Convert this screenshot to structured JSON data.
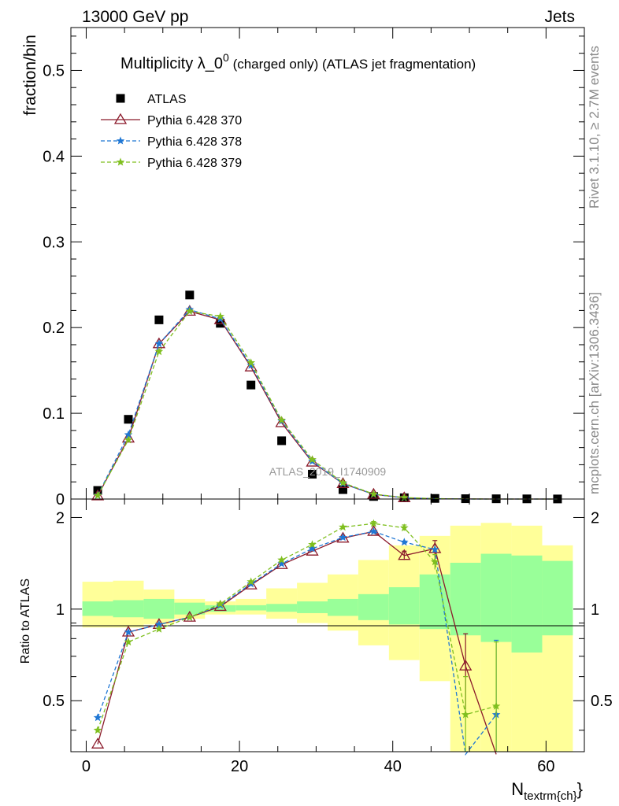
{
  "header": {
    "left": "13000 GeV pp",
    "right": "Jets"
  },
  "side_labels": {
    "rivet": "Rivet 3.1.10, ≥ 2.7M events",
    "mcplots": "mcplots.cern.ch [arXiv:1306.3436]"
  },
  "chart_data": [
    {
      "type": "scatter",
      "title": "Multiplicity λ_0^0 (charged only) (ATLAS jet fragmentation)",
      "title_main": "Multiplicity λ_0",
      "title_sup": "0",
      "title_rest": " (charged only) (ATLAS jet fragmentation)",
      "ylabel": "fraction/bin",
      "watermark": "ATLAS_2019_I1740909",
      "xlim": [
        -2,
        65
      ],
      "ylim": [
        0,
        0.55
      ],
      "yticks": [
        0,
        0.1,
        0.2,
        0.3,
        0.4,
        0.5
      ],
      "ytick_labels": [
        "0",
        "0.1",
        "0.2",
        "0.3",
        "0.4",
        "0.5"
      ],
      "legend_position": "top-left",
      "x": [
        1.5,
        5.5,
        9.5,
        13.5,
        17.5,
        21.5,
        25.5,
        29.5,
        33.5,
        37.5,
        41.5,
        45.5,
        49.5,
        53.5,
        57.5,
        61.5
      ],
      "series": [
        {
          "name": "ATLAS",
          "color": "#000000",
          "marker": "square",
          "values": [
            0.01,
            0.093,
            0.209,
            0.238,
            0.205,
            0.133,
            0.068,
            0.029,
            0.011,
            0.003,
            0.0015,
            0.0007,
            0.0004,
            0.0003,
            0.0002,
            0.0001
          ]
        },
        {
          "name": "Pythia 6.428 370",
          "color": "#8b1a2b",
          "marker": "triangle",
          "dash": "",
          "values": [
            0.0036,
            0.071,
            0.181,
            0.219,
            0.209,
            0.154,
            0.089,
            0.043,
            0.018,
            0.0055,
            0.0014,
            0.0004,
            0.0001,
            0.0,
            0.0,
            0.0
          ]
        },
        {
          "name": "Pythia 6.428 378",
          "color": "#1f77d4",
          "marker": "star",
          "dash": "5,3",
          "values": [
            0.0045,
            0.075,
            0.181,
            0.221,
            0.21,
            0.156,
            0.091,
            0.044,
            0.018,
            0.0055,
            0.0015,
            0.0004,
            0.0,
            0.0,
            0.0,
            0.0
          ]
        },
        {
          "name": "Pythia 6.428 379",
          "color": "#7fbf1f",
          "marker": "star",
          "dash": "5,3",
          "values": [
            0.0041,
            0.069,
            0.172,
            0.219,
            0.213,
            0.159,
            0.092,
            0.046,
            0.019,
            0.0058,
            0.0017,
            0.0005,
            0.0001,
            0.0,
            0.0,
            0.0
          ]
        }
      ]
    },
    {
      "type": "line",
      "ylabel": "Ratio to ATLAS",
      "xlabel": "N_textrm{ch}",
      "xlabel_main": "N",
      "xlabel_sub": "textrm{ch}",
      "xlabel_close": "}",
      "xlim": [
        -2,
        65
      ],
      "ylim": [
        0.34,
        2.3
      ],
      "xticks": [
        0,
        20,
        40,
        60
      ],
      "xtick_labels": [
        "0",
        "20",
        "40",
        "60"
      ],
      "yticks": [
        0.5,
        1,
        2
      ],
      "ytick_labels": [
        "0.5",
        "1",
        "2"
      ],
      "bands": {
        "edges": [
          -0.5,
          3.5,
          7.5,
          11.5,
          15.5,
          19.5,
          23.5,
          27.5,
          31.5,
          35.5,
          39.5,
          43.5,
          47.5,
          51.5,
          55.5,
          59.5,
          63.5
        ],
        "stat_lo": [
          0.95,
          0.94,
          0.93,
          0.96,
          0.98,
          0.99,
          0.98,
          0.97,
          0.95,
          0.92,
          0.89,
          0.86,
          0.82,
          0.78,
          0.72,
          0.82
        ],
        "stat_hi": [
          1.06,
          1.07,
          1.08,
          1.05,
          1.03,
          1.03,
          1.04,
          1.06,
          1.08,
          1.12,
          1.18,
          1.3,
          1.42,
          1.52,
          1.5,
          1.44
        ],
        "tot_lo": [
          0.87,
          0.87,
          0.89,
          0.93,
          0.96,
          0.96,
          0.93,
          0.9,
          0.85,
          0.76,
          0.68,
          0.58,
          0.34,
          0.34,
          0.34,
          0.34
        ],
        "tot_hi": [
          1.23,
          1.24,
          1.16,
          1.08,
          1.06,
          1.08,
          1.17,
          1.22,
          1.3,
          1.45,
          1.62,
          1.74,
          1.88,
          1.92,
          1.88,
          1.62
        ],
        "stat_color": "#99ff99",
        "tot_color": "#ffff99"
      },
      "x": [
        1.5,
        5.5,
        9.5,
        13.5,
        17.5,
        21.5,
        25.5,
        29.5,
        33.5,
        37.5,
        41.5,
        45.5,
        49.5,
        53.5
      ],
      "series": [
        {
          "name": "Pythia 6.428 370",
          "color": "#8b1a2b",
          "marker": "triangle",
          "dash": "",
          "values": [
            0.36,
            0.84,
            0.89,
            0.94,
            1.02,
            1.2,
            1.4,
            1.55,
            1.71,
            1.8,
            1.5,
            1.58,
            0.65,
            0.1
          ],
          "err": [
            0,
            0,
            0,
            0,
            0,
            0,
            0,
            0,
            0,
            0,
            0.05,
            0.1,
            0.18,
            0
          ]
        },
        {
          "name": "Pythia 6.428 378",
          "color": "#1f77d4",
          "marker": "star",
          "dash": "5,3",
          "values": [
            0.44,
            0.84,
            0.89,
            0.94,
            1.03,
            1.21,
            1.41,
            1.58,
            1.72,
            1.8,
            1.66,
            1.57,
            0.1,
            0.45
          ],
          "err": [
            0,
            0,
            0,
            0,
            0,
            0,
            0,
            0,
            0,
            0,
            0,
            0,
            0,
            0.34
          ]
        },
        {
          "name": "Pythia 6.428 379",
          "color": "#7fbf1f",
          "marker": "star",
          "dash": "5,3",
          "values": [
            0.4,
            0.78,
            0.86,
            0.94,
            1.04,
            1.23,
            1.45,
            1.63,
            1.86,
            1.91,
            1.85,
            1.43,
            0.45,
            0.48
          ],
          "err": [
            0,
            0,
            0,
            0,
            0,
            0,
            0,
            0,
            0,
            0.03,
            0.04,
            0.08,
            0.15,
            0.3
          ]
        }
      ]
    }
  ]
}
